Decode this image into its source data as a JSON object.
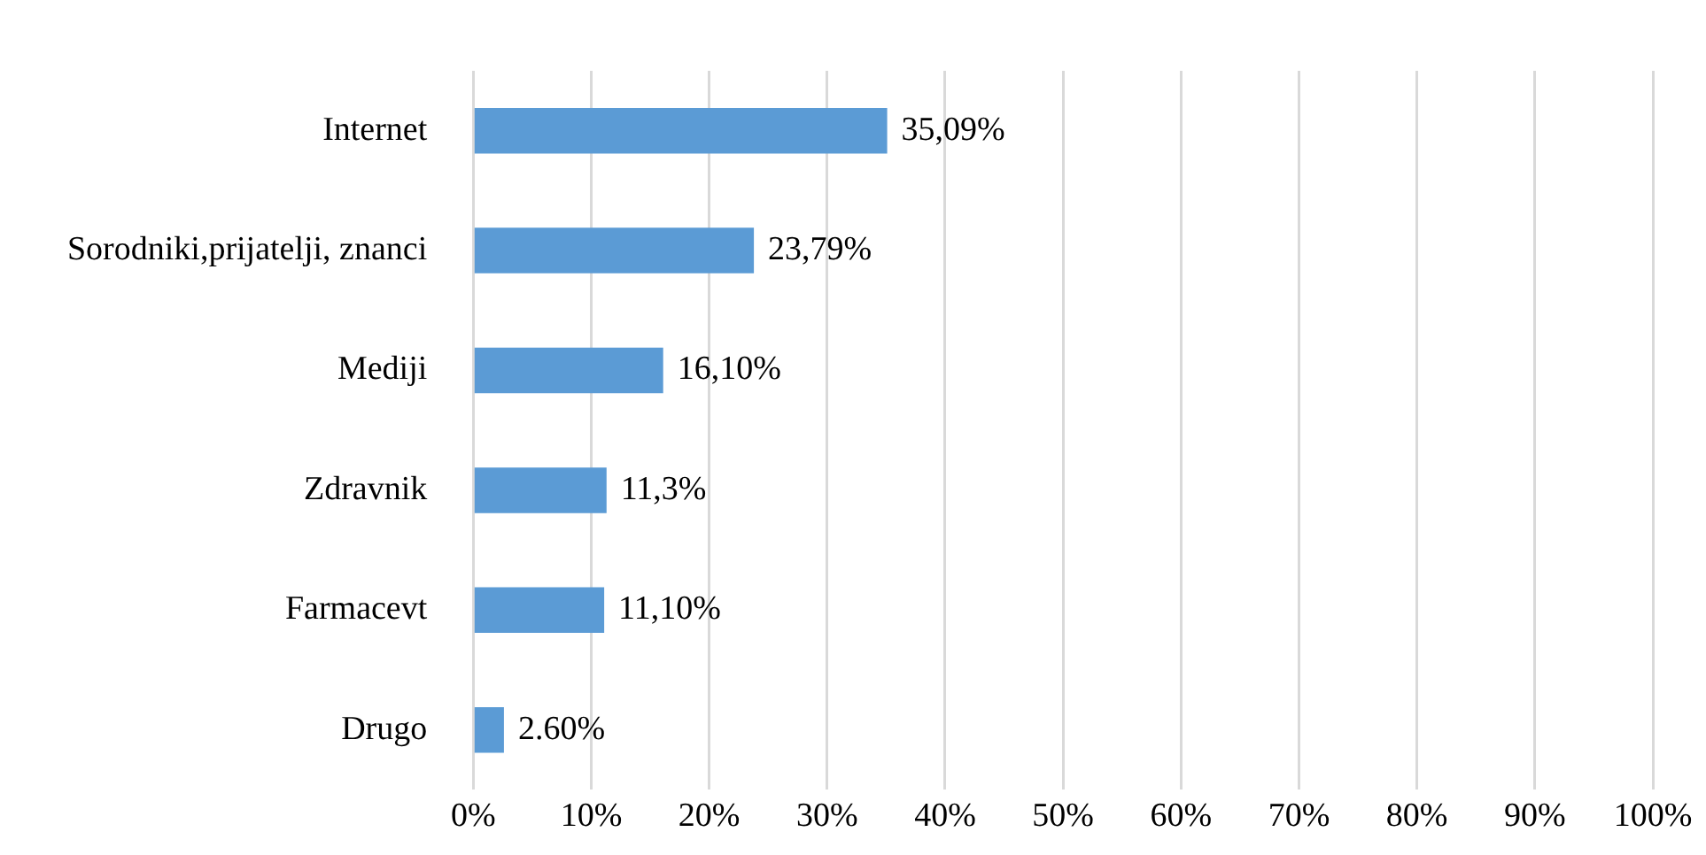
{
  "chart_data": {
    "type": "bar",
    "orientation": "horizontal",
    "categories": [
      "Internet",
      "Sorodniki,prijatelji, znanci",
      "Mediji",
      "Zdravnik",
      "Farmacevt",
      "Drugo"
    ],
    "values": [
      35.09,
      23.79,
      16.1,
      11.3,
      11.1,
      2.6
    ],
    "value_labels": [
      "35,09%",
      "23,79%",
      "16,10%",
      "11,3%",
      "11,10%",
      "2.60%"
    ],
    "color": "#5b9bd5",
    "xlim": [
      0,
      100
    ],
    "xticks": [
      {
        "value": 0,
        "label": "0%"
      },
      {
        "value": 10,
        "label": "10%"
      },
      {
        "value": 20,
        "label": "20%"
      },
      {
        "value": 30,
        "label": "30%"
      },
      {
        "value": 40,
        "label": "40%"
      },
      {
        "value": 50,
        "label": "50%"
      },
      {
        "value": 60,
        "label": "60%"
      },
      {
        "value": 70,
        "label": "70%"
      },
      {
        "value": 80,
        "label": "80%"
      },
      {
        "value": 90,
        "label": "90%"
      },
      {
        "value": 100,
        "label": "100%"
      }
    ],
    "grid": "x",
    "legend": false
  }
}
